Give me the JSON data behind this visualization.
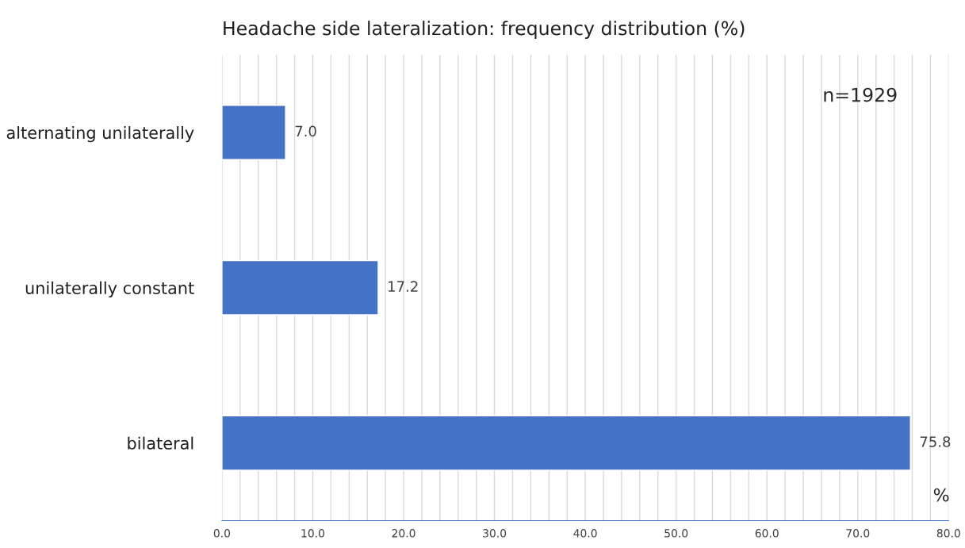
{
  "chart_data": {
    "type": "bar",
    "orientation": "horizontal",
    "title": "Headache side lateralization: frequency distribution (%)",
    "xlabel": "%",
    "categories": [
      "alternating unilaterally",
      "unilaterally constant",
      "bilateral"
    ],
    "values": [
      7.0,
      17.2,
      75.8
    ],
    "color": "#4472c4",
    "value_labels": [
      "7.0",
      "17.2",
      "75.8"
    ],
    "xlim": [
      0,
      80
    ],
    "xticks": [
      {
        "value": 0,
        "label": "0.0"
      },
      {
        "value": 2,
        "label": null
      },
      {
        "value": 4,
        "label": null
      },
      {
        "value": 6,
        "label": null
      },
      {
        "value": 8,
        "label": null
      },
      {
        "value": 10,
        "label": "10.0"
      },
      {
        "value": 12,
        "label": null
      },
      {
        "value": 14,
        "label": null
      },
      {
        "value": 16,
        "label": null
      },
      {
        "value": 18,
        "label": null
      },
      {
        "value": 20,
        "label": "20.0"
      },
      {
        "value": 22,
        "label": null
      },
      {
        "value": 24,
        "label": null
      },
      {
        "value": 26,
        "label": null
      },
      {
        "value": 28,
        "label": null
      },
      {
        "value": 30,
        "label": "30.0"
      },
      {
        "value": 32,
        "label": null
      },
      {
        "value": 34,
        "label": null
      },
      {
        "value": 36,
        "label": null
      },
      {
        "value": 38,
        "label": null
      },
      {
        "value": 40,
        "label": "40.0"
      },
      {
        "value": 42,
        "label": null
      },
      {
        "value": 44,
        "label": null
      },
      {
        "value": 46,
        "label": null
      },
      {
        "value": 48,
        "label": null
      },
      {
        "value": 50,
        "label": "50.0"
      },
      {
        "value": 52,
        "label": null
      },
      {
        "value": 54,
        "label": null
      },
      {
        "value": 56,
        "label": null
      },
      {
        "value": 58,
        "label": null
      },
      {
        "value": 60,
        "label": "60.0"
      },
      {
        "value": 62,
        "label": null
      },
      {
        "value": 64,
        "label": null
      },
      {
        "value": 66,
        "label": null
      },
      {
        "value": 68,
        "label": null
      },
      {
        "value": 70,
        "label": "70.0"
      },
      {
        "value": 72,
        "label": null
      },
      {
        "value": 74,
        "label": null
      },
      {
        "value": 76,
        "label": null
      },
      {
        "value": 78,
        "label": null
      },
      {
        "value": 80,
        "label": "80.0"
      }
    ],
    "grid": "x",
    "legend": false,
    "annotations": [
      "n=1929"
    ]
  }
}
